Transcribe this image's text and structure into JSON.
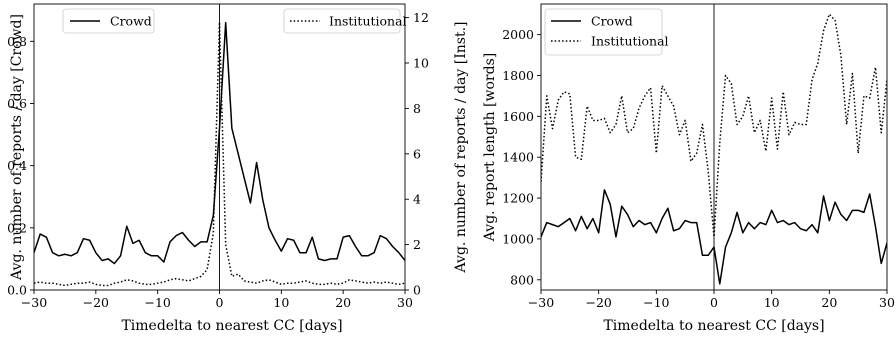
{
  "chart_data": [
    {
      "type": "line",
      "xlabel": "Timedelta to nearest CC [days]",
      "ylabel": "Avg. number of reports / day [Crowd]",
      "ylabel_right": "Avg. number of reports / day [Inst.]",
      "xlim": [
        -30,
        30
      ],
      "ylim": [
        0,
        0.92
      ],
      "ylim_right": [
        0,
        12.6
      ],
      "xticks": [
        "−30",
        "−20",
        "−10",
        "0",
        "10",
        "20",
        "30"
      ],
      "yticks": [
        "0.0",
        "0.2",
        "0.4",
        "0.6",
        "0.8"
      ],
      "yticks_right": [
        "0",
        "2",
        "4",
        "6",
        "8",
        "10",
        "12"
      ],
      "vline_x": 0,
      "legend": [
        {
          "name": "Crowd",
          "position": "top-left",
          "style": "solid"
        },
        {
          "name": "Institutional",
          "position": "top-right",
          "style": "dotted"
        }
      ],
      "series": [
        {
          "name": "Crowd",
          "axis": "left",
          "style": "solid",
          "x": [
            -30,
            -29,
            -28,
            -27,
            -26,
            -25,
            -24,
            -23,
            -22,
            -21,
            -20,
            -19,
            -18,
            -17,
            -16,
            -15,
            -14,
            -13,
            -12,
            -11,
            -10,
            -9,
            -8,
            -7,
            -6,
            -5,
            -4,
            -3,
            -2,
            -1,
            0,
            1,
            2,
            3,
            4,
            5,
            6,
            7,
            8,
            9,
            10,
            11,
            12,
            13,
            14,
            15,
            16,
            17,
            18,
            19,
            20,
            21,
            22,
            23,
            24,
            25,
            26,
            27,
            28,
            29,
            30
          ],
          "values": [
            0.12,
            0.18,
            0.17,
            0.12,
            0.11,
            0.115,
            0.11,
            0.12,
            0.165,
            0.16,
            0.12,
            0.095,
            0.1,
            0.085,
            0.11,
            0.205,
            0.15,
            0.16,
            0.12,
            0.11,
            0.11,
            0.09,
            0.155,
            0.175,
            0.185,
            0.16,
            0.14,
            0.155,
            0.155,
            0.24,
            0.52,
            0.86,
            0.52,
            0.44,
            0.36,
            0.28,
            0.41,
            0.29,
            0.2,
            0.16,
            0.125,
            0.165,
            0.16,
            0.12,
            0.12,
            0.17,
            0.1,
            0.095,
            0.1,
            0.1,
            0.17,
            0.175,
            0.14,
            0.11,
            0.11,
            0.12,
            0.175,
            0.165,
            0.14,
            0.12,
            0.095
          ]
        },
        {
          "name": "Institutional",
          "axis": "right",
          "style": "dotted",
          "x": [
            -30,
            -29,
            -28,
            -27,
            -26,
            -25,
            -24,
            -23,
            -22,
            -21,
            -20,
            -19,
            -18,
            -17,
            -16,
            -15,
            -14,
            -13,
            -12,
            -11,
            -10,
            -9,
            -8,
            -7,
            -6,
            -5,
            -4,
            -3,
            -2,
            -1,
            0,
            1,
            2,
            3,
            4,
            5,
            6,
            7,
            8,
            9,
            10,
            11,
            12,
            13,
            14,
            15,
            16,
            17,
            18,
            19,
            20,
            21,
            22,
            23,
            24,
            25,
            26,
            27,
            28,
            29,
            30
          ],
          "values": [
            0.3,
            0.35,
            0.3,
            0.3,
            0.25,
            0.2,
            0.25,
            0.3,
            0.3,
            0.35,
            0.25,
            0.2,
            0.2,
            0.3,
            0.35,
            0.45,
            0.4,
            0.3,
            0.25,
            0.25,
            0.3,
            0.35,
            0.45,
            0.5,
            0.45,
            0.4,
            0.5,
            0.6,
            0.9,
            2.5,
            11.8,
            2.0,
            0.6,
            0.7,
            0.4,
            0.35,
            0.3,
            0.4,
            0.45,
            0.35,
            0.25,
            0.3,
            0.3,
            0.35,
            0.4,
            0.3,
            0.25,
            0.25,
            0.3,
            0.25,
            0.3,
            0.45,
            0.4,
            0.35,
            0.3,
            0.35,
            0.3,
            0.35,
            0.3,
            0.25,
            0.3
          ]
        }
      ]
    },
    {
      "type": "line",
      "xlabel": "Timedelta to nearest CC [days]",
      "ylabel": "Avg. report length [words]",
      "xlim": [
        -30,
        30
      ],
      "ylim": [
        750,
        2150
      ],
      "xticks": [
        "−30",
        "−20",
        "−10",
        "0",
        "10",
        "20",
        "30"
      ],
      "yticks": [
        "800",
        "1000",
        "1200",
        "1400",
        "1600",
        "1800",
        "2000"
      ],
      "vline_x": 0,
      "legend": [
        {
          "name": "Crowd",
          "position": "top-left",
          "style": "solid"
        },
        {
          "name": "Institutional",
          "position": "top-left",
          "style": "dotted"
        }
      ],
      "series": [
        {
          "name": "Crowd",
          "style": "solid",
          "x": [
            -30,
            -29,
            -28,
            -27,
            -26,
            -25,
            -24,
            -23,
            -22,
            -21,
            -20,
            -19,
            -18,
            -17,
            -16,
            -15,
            -14,
            -13,
            -12,
            -11,
            -10,
            -9,
            -8,
            -7,
            -6,
            -5,
            -4,
            -3,
            -2,
            -1,
            0,
            1,
            2,
            3,
            4,
            5,
            6,
            7,
            8,
            9,
            10,
            11,
            12,
            13,
            14,
            15,
            16,
            17,
            18,
            19,
            20,
            21,
            22,
            23,
            24,
            25,
            26,
            27,
            28,
            29,
            30
          ],
          "values": [
            1010,
            1080,
            1070,
            1060,
            1080,
            1100,
            1040,
            1110,
            1050,
            1100,
            1030,
            1240,
            1170,
            1010,
            1160,
            1120,
            1060,
            1090,
            1070,
            1080,
            1030,
            1100,
            1150,
            1040,
            1050,
            1090,
            1080,
            1080,
            920,
            920,
            960,
            780,
            960,
            1030,
            1130,
            1030,
            1080,
            1050,
            1080,
            1070,
            1140,
            1080,
            1090,
            1070,
            1080,
            1050,
            1040,
            1070,
            1030,
            1210,
            1090,
            1180,
            1120,
            1090,
            1140,
            1140,
            1130,
            1220,
            1060,
            880,
            980
          ]
        },
        {
          "name": "Institutional",
          "style": "dotted",
          "x": [
            -30,
            -29,
            -28,
            -27,
            -26,
            -25,
            -24,
            -23,
            -22,
            -21,
            -20,
            -19,
            -18,
            -17,
            -16,
            -15,
            -14,
            -13,
            -12,
            -11,
            -10,
            -9,
            -8,
            -7,
            -6,
            -5,
            -4,
            -3,
            -2,
            -1,
            0,
            1,
            2,
            3,
            4,
            5,
            6,
            7,
            8,
            9,
            10,
            11,
            12,
            13,
            14,
            15,
            16,
            17,
            18,
            19,
            20,
            21,
            22,
            23,
            24,
            25,
            26,
            27,
            28,
            29,
            30
          ],
          "values": [
            1280,
            1700,
            1540,
            1680,
            1720,
            1710,
            1400,
            1390,
            1650,
            1580,
            1580,
            1590,
            1520,
            1560,
            1700,
            1520,
            1540,
            1640,
            1700,
            1740,
            1420,
            1750,
            1700,
            1650,
            1510,
            1580,
            1380,
            1420,
            1560,
            1330,
            1010,
            1470,
            1800,
            1760,
            1560,
            1600,
            1700,
            1520,
            1580,
            1430,
            1690,
            1440,
            1720,
            1510,
            1570,
            1560,
            1560,
            1780,
            1860,
            2020,
            2100,
            2070,
            1900,
            1560,
            1810,
            1420,
            1700,
            1690,
            1840,
            1520,
            1780
          ]
        }
      ]
    }
  ]
}
